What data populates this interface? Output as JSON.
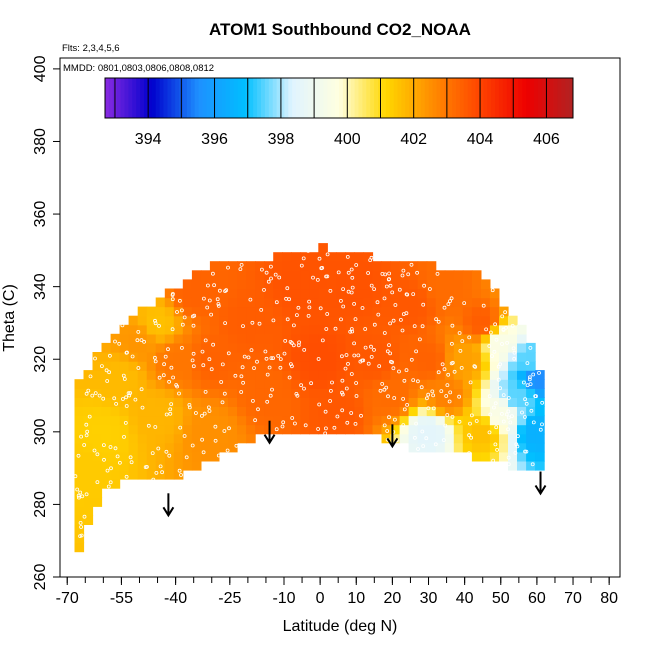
{
  "chart_data": {
    "type": "heatmap",
    "title": "ATOM1 Southbound CO2_NOAA",
    "flights_note": "Flts: 2,3,4,5,6",
    "dates_note": "MMDD: 0801,0803,0806,0808,0812",
    "xlabel": "Latitude (deg N)",
    "ylabel": "Theta (C)",
    "xlim": [
      -72,
      83
    ],
    "ylim": [
      260,
      403
    ],
    "x_ticks": [
      -70,
      -55,
      -40,
      -25,
      -10,
      0,
      10,
      20,
      30,
      40,
      50,
      60,
      70,
      80
    ],
    "x_tick_labels": [
      "-70",
      "-55",
      "-40",
      "-25",
      "-10",
      "0",
      "10",
      "20",
      "30",
      "40",
      "50",
      "60",
      "70",
      "80"
    ],
    "x_minor_step": 5,
    "y_ticks": [
      260,
      280,
      300,
      320,
      340,
      360,
      380,
      400
    ],
    "y_tick_labels": [
      "260",
      "280",
      "300",
      "320",
      "340",
      "360",
      "380",
      "400"
    ],
    "colorbar": {
      "range": [
        392.7,
        406.8
      ],
      "ticks": [
        394,
        396,
        398,
        400,
        402,
        404,
        406
      ],
      "tick_labels": [
        "394",
        "396",
        "398",
        "400",
        "402",
        "404",
        "406"
      ],
      "colors": [
        "#8a2be2",
        "#0000cd",
        "#1e90ff",
        "#00bfff",
        "#e0f4ff",
        "#ffffe0",
        "#ffd700",
        "#ff8c00",
        "#ff4500",
        "#ee0000",
        "#b22222"
      ]
    },
    "co2_field": {
      "lat_range": [
        -68,
        62
      ],
      "lower_theta_boundary": [
        [
          -68,
          264
        ],
        [
          -65,
          272
        ],
        [
          -60,
          283
        ],
        [
          -55,
          286
        ],
        [
          -50,
          286
        ],
        [
          -42,
          287
        ],
        [
          -35,
          289
        ],
        [
          -25,
          295
        ],
        [
          -15,
          299
        ],
        [
          -10,
          300
        ],
        [
          -5,
          300
        ],
        [
          0,
          299
        ],
        [
          5,
          300
        ],
        [
          10,
          301
        ],
        [
          20,
          297
        ],
        [
          28,
          295
        ],
        [
          35,
          295
        ],
        [
          42,
          293
        ],
        [
          50,
          291
        ],
        [
          55,
          290
        ],
        [
          60,
          290
        ],
        [
          62,
          292
        ]
      ],
      "upper_theta_boundary": [
        [
          -68,
          313
        ],
        [
          -62,
          321
        ],
        [
          -55,
          330
        ],
        [
          -45,
          336
        ],
        [
          -35,
          344
        ],
        [
          -30,
          346
        ],
        [
          -20,
          347
        ],
        [
          -10,
          349
        ],
        [
          0,
          351
        ],
        [
          10,
          349
        ],
        [
          20,
          347
        ],
        [
          30,
          346
        ],
        [
          38,
          345
        ],
        [
          45,
          343
        ],
        [
          50,
          336
        ],
        [
          55,
          330
        ],
        [
          58,
          325
        ],
        [
          60,
          320
        ],
        [
          62,
          310
        ]
      ],
      "anchors": [
        {
          "lat": -66,
          "theta": 290,
          "co2": 401.4
        },
        {
          "lat": -60,
          "theta": 300,
          "co2": 401.3
        },
        {
          "lat": -55,
          "theta": 315,
          "co2": 401.7
        },
        {
          "lat": -50,
          "theta": 325,
          "co2": 402.4
        },
        {
          "lat": -45,
          "theta": 330,
          "co2": 401.6
        },
        {
          "lat": -45,
          "theta": 305,
          "co2": 401.8
        },
        {
          "lat": -40,
          "theta": 320,
          "co2": 403.0
        },
        {
          "lat": -35,
          "theta": 338,
          "co2": 403.4
        },
        {
          "lat": -30,
          "theta": 320,
          "co2": 403.4
        },
        {
          "lat": -30,
          "theta": 300,
          "co2": 402.5
        },
        {
          "lat": -20,
          "theta": 330,
          "co2": 403.5
        },
        {
          "lat": -15,
          "theta": 310,
          "co2": 403.3
        },
        {
          "lat": -5,
          "theta": 340,
          "co2": 403.7
        },
        {
          "lat": 0,
          "theta": 320,
          "co2": 403.8
        },
        {
          "lat": 5,
          "theta": 305,
          "co2": 403.6
        },
        {
          "lat": 10,
          "theta": 340,
          "co2": 403.7
        },
        {
          "lat": 15,
          "theta": 320,
          "co2": 403.6
        },
        {
          "lat": 20,
          "theta": 310,
          "co2": 403.2
        },
        {
          "lat": 25,
          "theta": 335,
          "co2": 403.6
        },
        {
          "lat": 30,
          "theta": 320,
          "co2": 403.4
        },
        {
          "lat": 30,
          "theta": 300,
          "co2": 398.5
        },
        {
          "lat": 35,
          "theta": 340,
          "co2": 403.2
        },
        {
          "lat": 35,
          "theta": 310,
          "co2": 402.8
        },
        {
          "lat": 40,
          "theta": 320,
          "co2": 402.2
        },
        {
          "lat": 45,
          "theta": 330,
          "co2": 403.5
        },
        {
          "lat": 45,
          "theta": 300,
          "co2": 401.6
        },
        {
          "lat": 50,
          "theta": 325,
          "co2": 399.5
        },
        {
          "lat": 50,
          "theta": 305,
          "co2": 399.5
        },
        {
          "lat": 55,
          "theta": 310,
          "co2": 397.5
        },
        {
          "lat": 58,
          "theta": 320,
          "co2": 397.5
        },
        {
          "lat": 60,
          "theta": 300,
          "co2": 396.5
        },
        {
          "lat": 60,
          "theta": 315,
          "co2": 395.5
        }
      ]
    },
    "arrows": [
      {
        "lat": -42,
        "theta_tip": 277
      },
      {
        "lat": -14,
        "theta_tip": 297
      },
      {
        "lat": 20,
        "theta_tip": 296
      },
      {
        "lat": 61,
        "theta_tip": 283
      }
    ]
  }
}
